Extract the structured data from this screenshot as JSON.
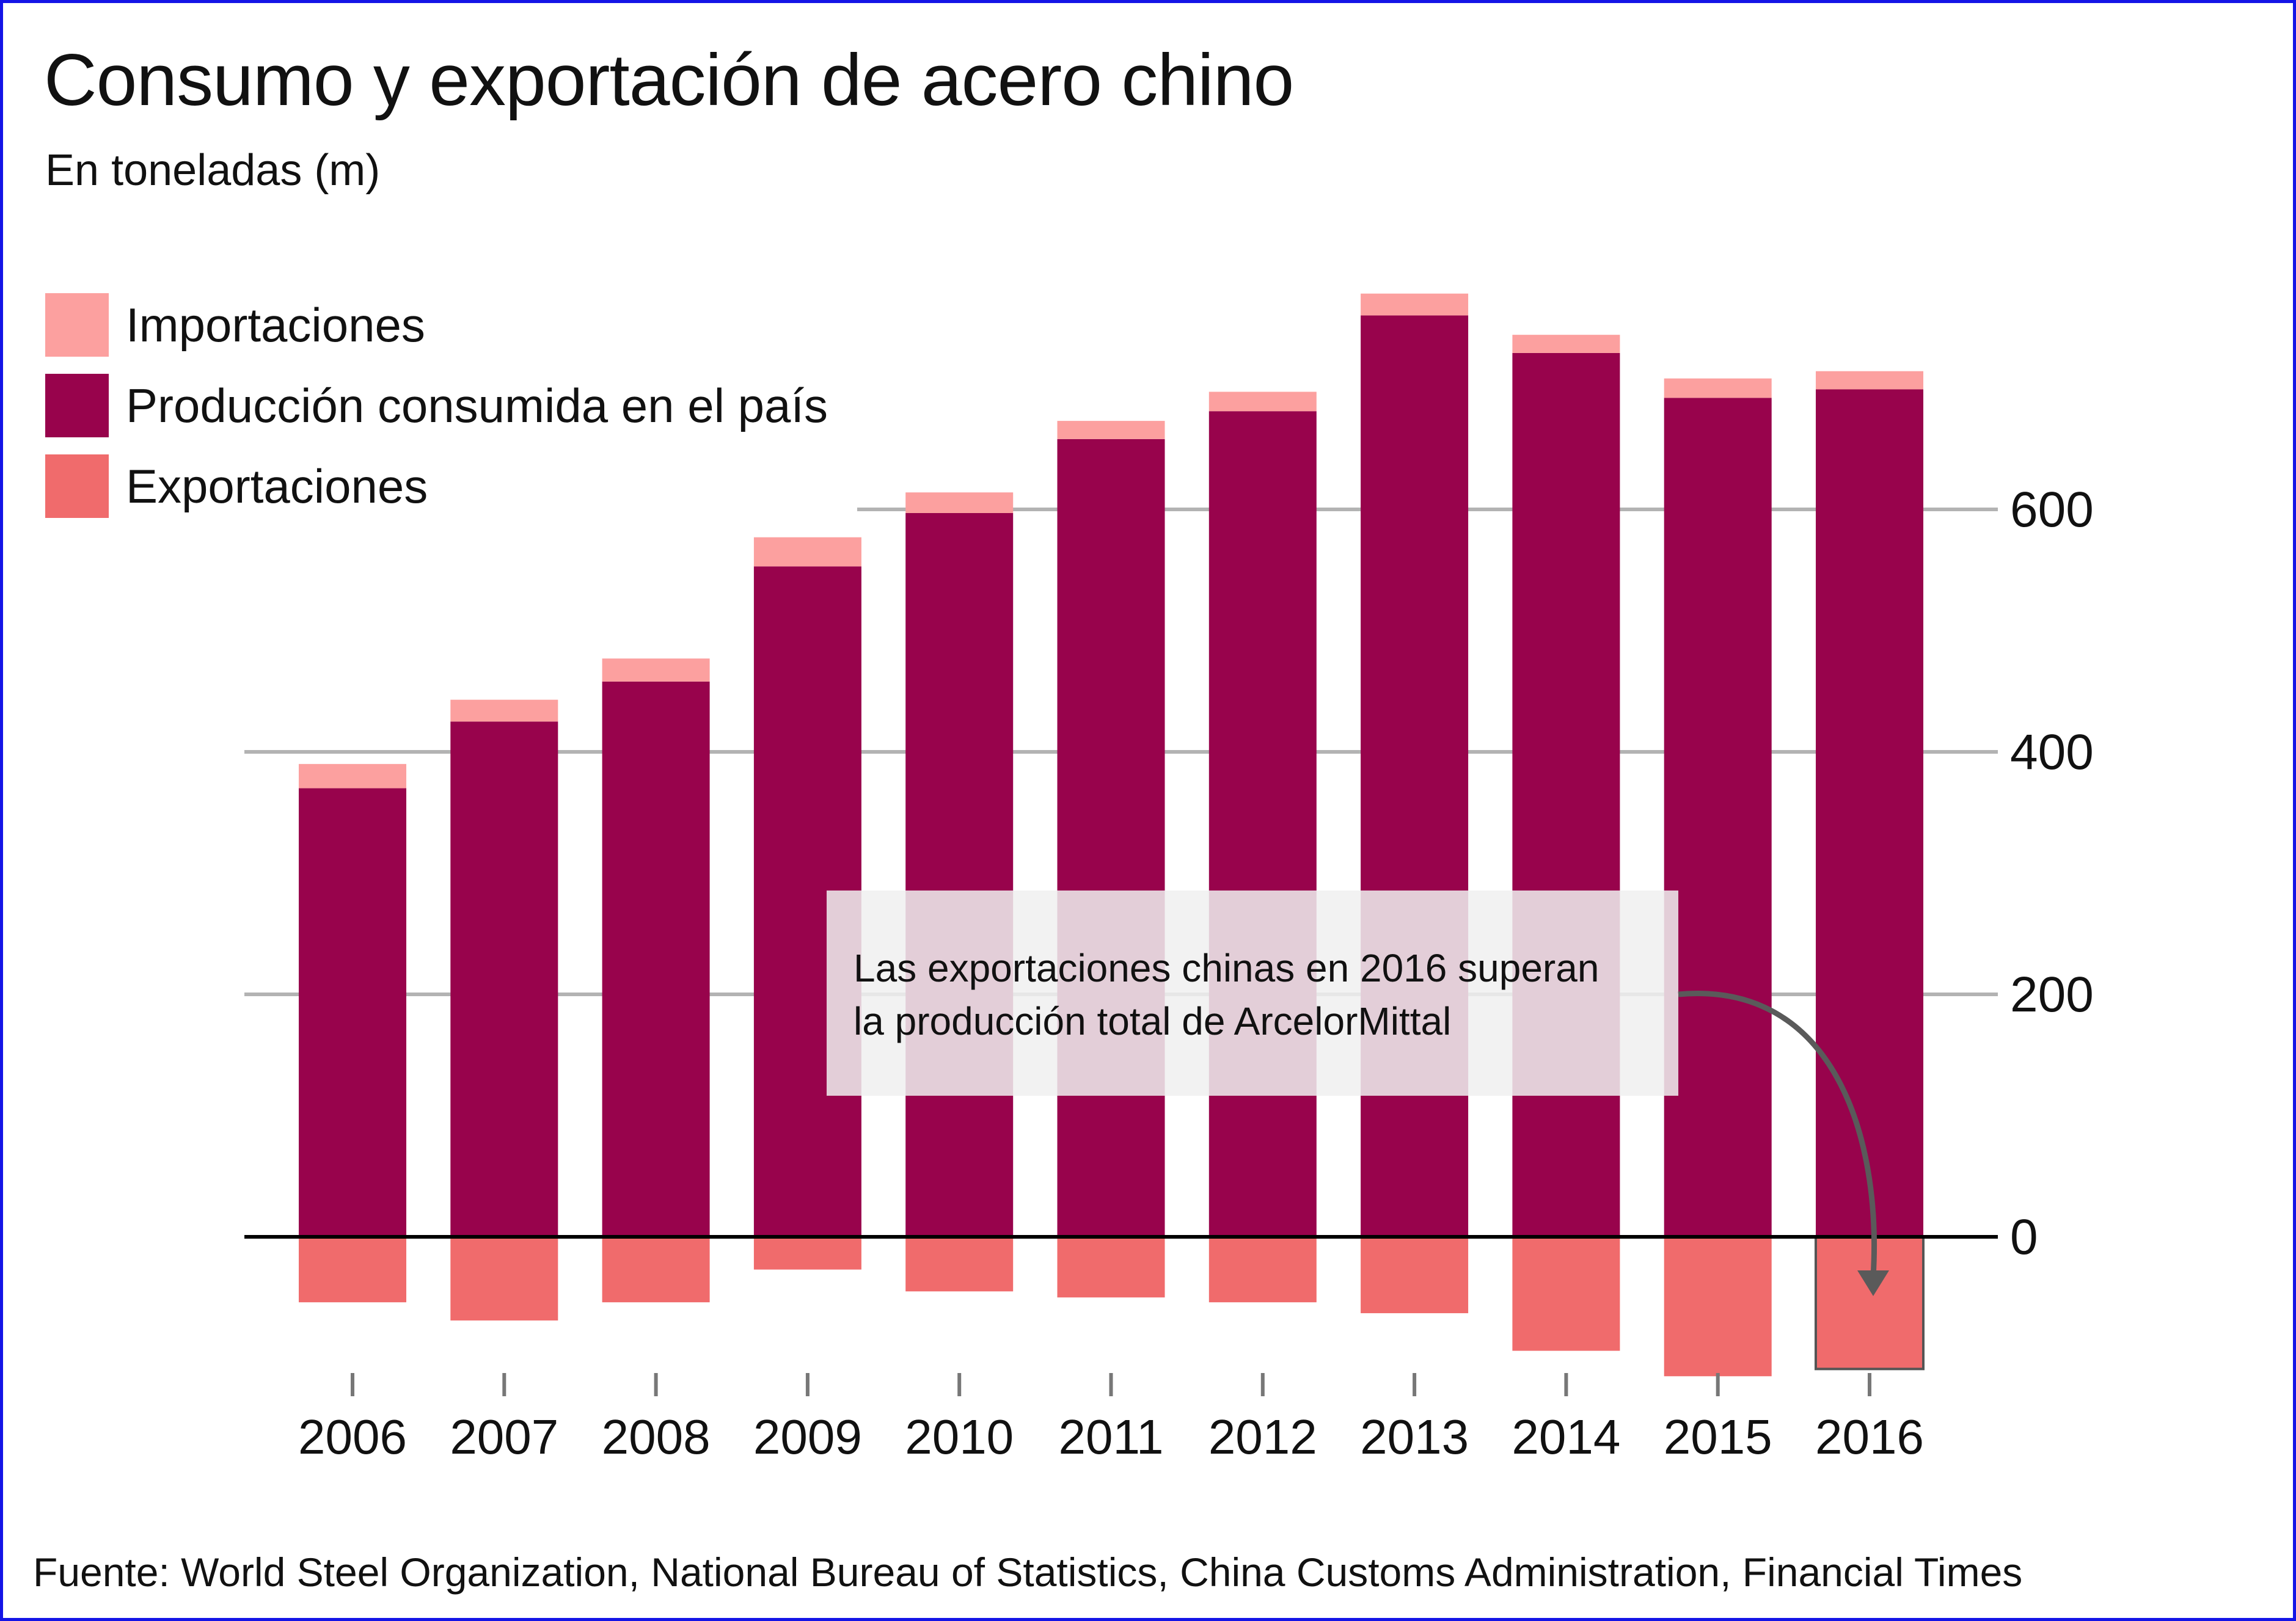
{
  "title": "Consumo y exportación de acero chino",
  "subtitle": "En toneladas (m)",
  "legend": [
    {
      "label": "Importaciones",
      "color": "#fca09f"
    },
    {
      "label": "Producción consumida en el país",
      "color": "#98034c"
    },
    {
      "label": "Exportaciones",
      "color": "#f06b6c"
    }
  ],
  "annotation": {
    "line1": "Las exportaciones chinas en 2016 superan",
    "line2": "la producción total de ArcelorMittal"
  },
  "source": "Fuente: World Steel Organization, National Bureau of Statistics, China Customs Administration, Financial Times",
  "chart_data": {
    "type": "bar",
    "stacked": true,
    "categories": [
      "2006",
      "2007",
      "2008",
      "2009",
      "2010",
      "2011",
      "2012",
      "2013",
      "2014",
      "2015",
      "2016"
    ],
    "series": [
      {
        "name": "Producción consumida en el país",
        "color": "#98034c",
        "values": [
          370,
          425,
          458,
          553,
          597,
          658,
          681,
          760,
          729,
          692,
          699
        ]
      },
      {
        "name": "Importaciones",
        "color": "#fca09f",
        "values": [
          20,
          18,
          19,
          24,
          17,
          15,
          16,
          18,
          15,
          16,
          15
        ]
      },
      {
        "name": "Exportaciones",
        "color": "#f06b6c",
        "values": [
          -54,
          -69,
          -54,
          -27,
          -45,
          -50,
          -54,
          -63,
          -94,
          -115,
          -109
        ]
      }
    ],
    "yticks": [
      0,
      200,
      400,
      600
    ],
    "ylim": [
      -120,
      780
    ],
    "highlight_category": "2016",
    "grid": true,
    "legend_position": "top-left",
    "y_axis_position": "right"
  }
}
